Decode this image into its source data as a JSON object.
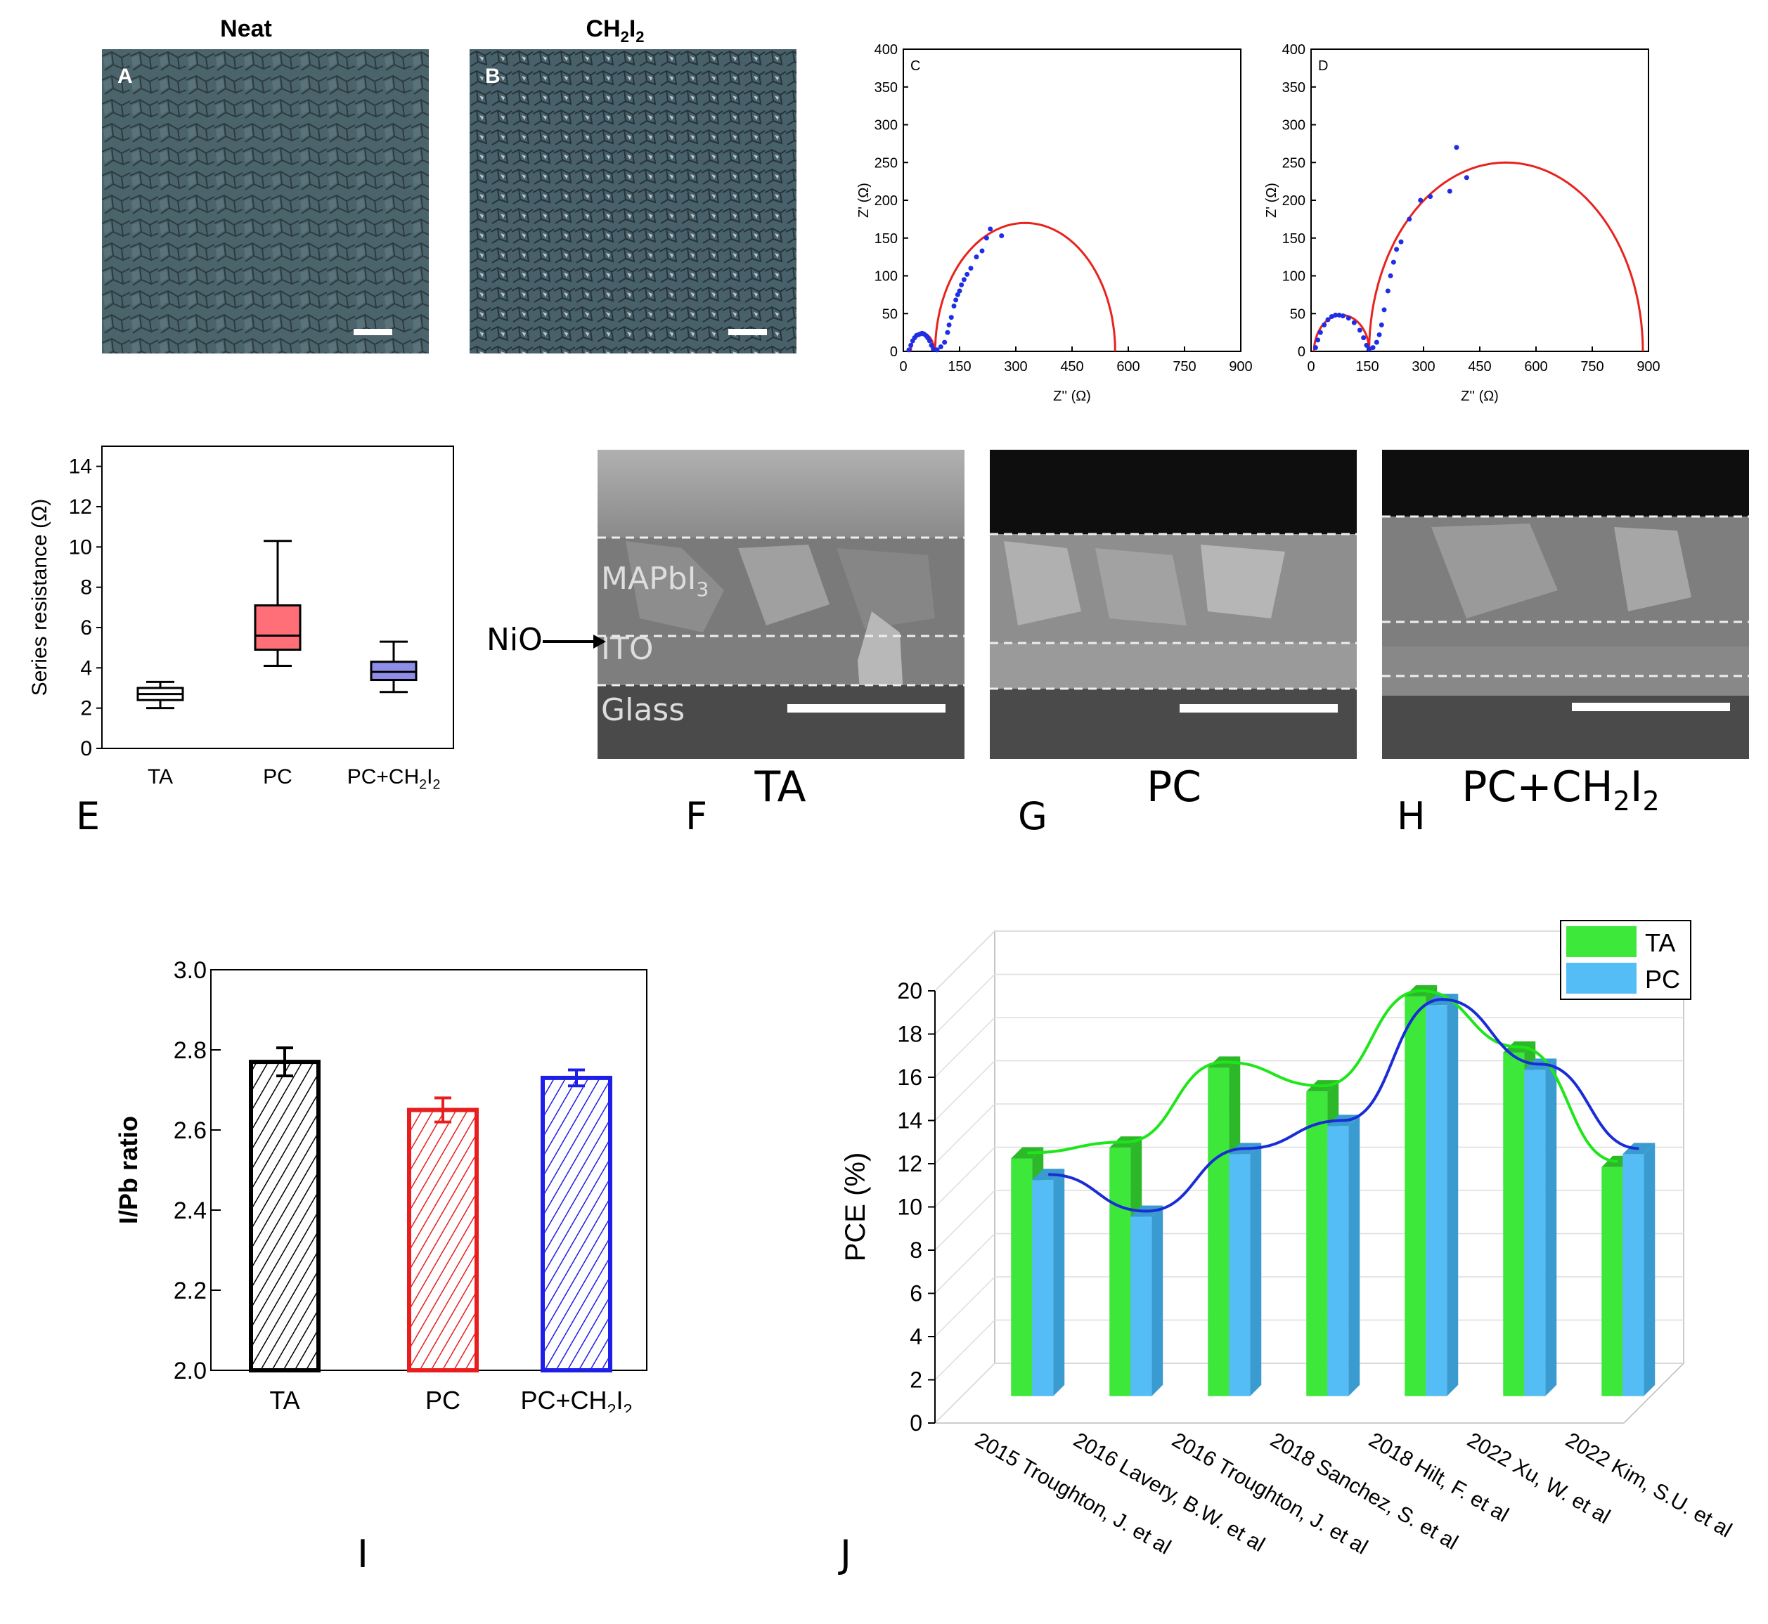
{
  "panels": {
    "A": {
      "title": "Neat",
      "letter": "A"
    },
    "B": {
      "title_main": "CH",
      "title_sub1": "2",
      "title_mid": "I",
      "title_sub2": "2",
      "letter": "B"
    },
    "F": {
      "letter": "F",
      "label": "TA",
      "layers": {
        "perovskite": "MAPbI",
        "perovskite_sub": "3",
        "ito": "ITO",
        "glass": "Glass",
        "nio": "NiO"
      }
    },
    "G": {
      "letter": "G",
      "label": "PC"
    },
    "H": {
      "letter": "H",
      "label_main": "PC+CH",
      "label_sub1": "2",
      "label_mid": "I",
      "label_sub2": "2"
    },
    "E_letter": "E",
    "I_letter": "I",
    "J_letter": "J"
  },
  "colors": {
    "sem": "#445a62",
    "fit": "#e8231e",
    "points": "#1f2ee6",
    "green": "#3ee83a",
    "blue": "#55bdf5",
    "pc_red": "#ff6f78",
    "pcch_blue": "#8e8ee8"
  },
  "chart_data": [
    {
      "id": "C",
      "type": "scatter",
      "letter": "C",
      "xlabel": "Z'' (Ω)",
      "ylabel": "Z' (Ω)",
      "xlim": [
        0,
        900
      ],
      "ylim": [
        0,
        400
      ],
      "xticks": [
        0,
        150,
        300,
        450,
        600,
        750,
        900
      ],
      "yticks": [
        0,
        50,
        100,
        150,
        200,
        250,
        300,
        350,
        400
      ],
      "fit_series": [
        {
          "type": "arc",
          "center": 80,
          "radius": 10,
          "note": "small arc"
        }
      ],
      "fit_arcs": [
        {
          "x0": 85,
          "x1": 565,
          "ymax": 170
        }
      ],
      "small_arc": {
        "x0": 20,
        "x1": 82,
        "ymax": 24
      },
      "points": [
        [
          15,
          2
        ],
        [
          20,
          8
        ],
        [
          25,
          14
        ],
        [
          30,
          18
        ],
        [
          35,
          21
        ],
        [
          40,
          22
        ],
        [
          45,
          23
        ],
        [
          50,
          24
        ],
        [
          55,
          23
        ],
        [
          60,
          21
        ],
        [
          65,
          18
        ],
        [
          70,
          14
        ],
        [
          75,
          8
        ],
        [
          80,
          3
        ],
        [
          90,
          2
        ],
        [
          100,
          6
        ],
        [
          110,
          12
        ],
        [
          118,
          25
        ],
        [
          122,
          35
        ],
        [
          128,
          45
        ],
        [
          135,
          60
        ],
        [
          140,
          68
        ],
        [
          145,
          75
        ],
        [
          150,
          80
        ],
        [
          155,
          88
        ],
        [
          162,
          95
        ],
        [
          170,
          102
        ],
        [
          180,
          110
        ],
        [
          195,
          125
        ],
        [
          210,
          133
        ],
        [
          222,
          150
        ],
        [
          232,
          162
        ],
        [
          262,
          153
        ]
      ]
    },
    {
      "id": "D",
      "type": "scatter",
      "letter": "D",
      "xlabel": "Z'' (Ω)",
      "ylabel": "Z' (Ω)",
      "xlim": [
        0,
        900
      ],
      "ylim": [
        0,
        400
      ],
      "xticks": [
        0,
        150,
        300,
        450,
        600,
        750,
        900
      ],
      "yticks": [
        0,
        50,
        100,
        150,
        200,
        250,
        300,
        350,
        400
      ],
      "fit_arcs": [
        {
          "x0": 155,
          "x1": 885,
          "ymax": 250
        }
      ],
      "small_arc": {
        "x0": 8,
        "x1": 155,
        "ymax": 48
      },
      "points": [
        [
          12,
          5
        ],
        [
          18,
          15
        ],
        [
          25,
          25
        ],
        [
          35,
          35
        ],
        [
          45,
          42
        ],
        [
          55,
          46
        ],
        [
          65,
          48
        ],
        [
          75,
          48
        ],
        [
          85,
          47
        ],
        [
          100,
          44
        ],
        [
          115,
          38
        ],
        [
          130,
          28
        ],
        [
          140,
          18
        ],
        [
          148,
          8
        ],
        [
          155,
          3
        ],
        [
          165,
          5
        ],
        [
          175,
          12
        ],
        [
          182,
          22
        ],
        [
          188,
          35
        ],
        [
          195,
          55
        ],
        [
          205,
          80
        ],
        [
          212,
          100
        ],
        [
          220,
          118
        ],
        [
          228,
          135
        ],
        [
          240,
          145
        ],
        [
          262,
          175
        ],
        [
          292,
          200
        ],
        [
          318,
          205
        ],
        [
          370,
          212
        ],
        [
          388,
          270
        ],
        [
          415,
          230
        ]
      ]
    },
    {
      "id": "E",
      "type": "box",
      "ylabel": "Series resistance (Ω)",
      "categories": [
        "TA",
        "PC",
        "PC+CH2I2"
      ],
      "category_labels": [
        {
          "main": "TA"
        },
        {
          "main": "PC"
        },
        {
          "main": "PC+CH",
          "sub1": "2",
          "mid": "I",
          "sub2": "2"
        }
      ],
      "ylim": [
        0,
        15
      ],
      "yticks": [
        0,
        2,
        4,
        6,
        8,
        10,
        12,
        14
      ],
      "boxes": [
        {
          "min": 2.0,
          "q1": 2.4,
          "median": 2.7,
          "q3": 3.0,
          "max": 3.3
        },
        {
          "min": 4.1,
          "q1": 4.9,
          "median": 5.6,
          "q3": 7.1,
          "max": 10.3
        },
        {
          "min": 2.8,
          "q1": 3.4,
          "median": 3.8,
          "q3": 4.3,
          "max": 5.3
        }
      ]
    },
    {
      "id": "I",
      "type": "bar",
      "ylabel": "I/Pb ratio",
      "categories": [
        "TA",
        "PC",
        "PC+CH2I2"
      ],
      "category_labels": [
        {
          "main": "TA"
        },
        {
          "main": "PC"
        },
        {
          "main": "PC+CH",
          "sub1": "2",
          "mid": "I",
          "sub2": "2"
        }
      ],
      "ylim": [
        2.0,
        3.0
      ],
      "yticks": [
        2.0,
        2.2,
        2.4,
        2.6,
        2.8,
        3.0
      ],
      "values": [
        2.77,
        2.65,
        2.73
      ],
      "errors": [
        0.035,
        0.03,
        0.02
      ]
    },
    {
      "id": "J",
      "type": "bar",
      "ylabel": "PCE (%)",
      "categories": [
        "2015 Troughton, J. et al",
        "2016 Lavery, B.W. et al",
        "2016 Troughton, J. et al",
        "2018 Sanchez, S. et al",
        "2018 Hilt, F. et al",
        "2022 Xu, W. et al",
        "2022 Kim, S.U. et al"
      ],
      "ylim": [
        0,
        20
      ],
      "yticks": [
        0,
        2,
        4,
        6,
        8,
        10,
        12,
        14,
        16,
        18,
        20
      ],
      "legend": "top-right",
      "series": [
        {
          "name": "TA",
          "values": [
            11.0,
            11.5,
            15.2,
            14.1,
            18.5,
            15.9,
            10.6
          ]
        },
        {
          "name": "PC",
          "values": [
            10.0,
            8.3,
            11.2,
            12.5,
            18.1,
            15.1,
            11.2
          ]
        }
      ]
    }
  ]
}
